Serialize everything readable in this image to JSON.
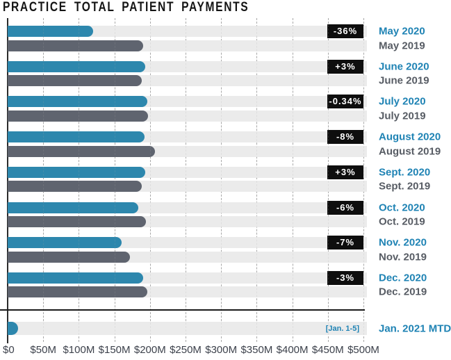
{
  "title": "PRACTICE TOTAL PATIENT PAYMENTS",
  "colors": {
    "bar_2020": "#2d87ad",
    "bar_2019": "#5f646f",
    "band": "#ebebeb",
    "badge_bg": "#0e0e0e",
    "badge_text": "#ffffff",
    "label_2020": "#1f83b4",
    "label_2019": "#575c64",
    "axis_text": "#3c414b",
    "grid": "#a8a8a8",
    "separator": "#1a1a1a"
  },
  "chart_data": {
    "type": "bar",
    "orientation": "horizontal",
    "title": "PRACTICE TOTAL PATIENT PAYMENTS",
    "unit": "USD millions",
    "x_axis": {
      "min": 0,
      "max": 500,
      "tick_interval": 50,
      "ticks": [
        "$0",
        "$50M",
        "$100M",
        "$150M",
        "$200M",
        "$250M",
        "$300M",
        "$350M",
        "$400M",
        "$450M",
        "$500M"
      ],
      "grid": "dashed-vertical"
    },
    "series": [
      {
        "name": "2020",
        "color": "#2d87ad"
      },
      {
        "name": "2019",
        "color": "#5f646f"
      }
    ],
    "pairs": [
      {
        "month": "May",
        "label_2020": "May 2020",
        "label_2019": "May 2019",
        "value_2020": 120,
        "value_2019": 190,
        "change_label": "-36%"
      },
      {
        "month": "June",
        "label_2020": "June 2020",
        "label_2019": "June 2019",
        "value_2020": 193,
        "value_2019": 188,
        "change_label": "+3%"
      },
      {
        "month": "July",
        "label_2020": "July 2020",
        "label_2019": "July 2019",
        "value_2020": 196,
        "value_2019": 197,
        "change_label": "-0.34%"
      },
      {
        "month": "August",
        "label_2020": "August 2020",
        "label_2019": "August 2019",
        "value_2020": 192,
        "value_2019": 207,
        "change_label": "-8%"
      },
      {
        "month": "September",
        "label_2020": "Sept. 2020",
        "label_2019": "Sept. 2019",
        "value_2020": 193,
        "value_2019": 188,
        "change_label": "+3%"
      },
      {
        "month": "October",
        "label_2020": "Oct. 2020",
        "label_2019": "Oct. 2019",
        "value_2020": 184,
        "value_2019": 194,
        "change_label": "-6%"
      },
      {
        "month": "November",
        "label_2020": "Nov. 2020",
        "label_2019": "Nov. 2019",
        "value_2020": 160,
        "value_2019": 172,
        "change_label": "-7%"
      },
      {
        "month": "December",
        "label_2020": "Dec. 2020",
        "label_2019": "Dec. 2019",
        "value_2020": 190,
        "value_2019": 196,
        "change_label": "-3%"
      }
    ],
    "mtd": {
      "label": "Jan. 2021 MTD",
      "note": "[Jan. 1-5]",
      "value": 15
    }
  }
}
